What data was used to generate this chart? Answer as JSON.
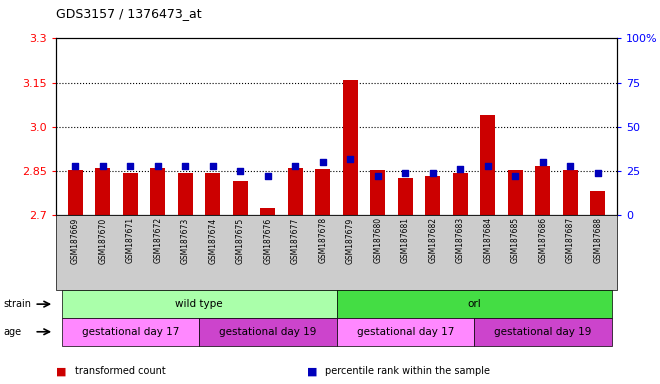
{
  "title": "GDS3157 / 1376473_at",
  "samples": [
    "GSM187669",
    "GSM187670",
    "GSM187671",
    "GSM187672",
    "GSM187673",
    "GSM187674",
    "GSM187675",
    "GSM187676",
    "GSM187677",
    "GSM187678",
    "GSM187679",
    "GSM187680",
    "GSM187681",
    "GSM187682",
    "GSM187683",
    "GSM187684",
    "GSM187685",
    "GSM187686",
    "GSM187687",
    "GSM187688"
  ],
  "red_values": [
    2.855,
    2.86,
    2.845,
    2.86,
    2.845,
    2.844,
    2.815,
    2.725,
    2.86,
    2.856,
    3.16,
    2.855,
    2.828,
    2.835,
    2.845,
    3.04,
    2.855,
    2.868,
    2.855,
    2.782
  ],
  "blue_values": [
    28,
    28,
    28,
    28,
    28,
    28,
    25,
    22,
    28,
    30,
    32,
    22,
    24,
    24,
    26,
    28,
    22,
    30,
    28,
    24
  ],
  "ylim_left": [
    2.7,
    3.3
  ],
  "ylim_right": [
    0,
    100
  ],
  "yticks_left": [
    2.7,
    2.85,
    3.0,
    3.15,
    3.3
  ],
  "yticks_right": [
    0,
    25,
    50,
    75,
    100
  ],
  "hlines": [
    2.85,
    3.0,
    3.15
  ],
  "strain_labels": [
    {
      "label": "wild type",
      "start": 0,
      "end": 10,
      "color": "#AAFFAA"
    },
    {
      "label": "orl",
      "start": 10,
      "end": 20,
      "color": "#44DD44"
    }
  ],
  "age_labels": [
    {
      "label": "gestational day 17",
      "start": 0,
      "end": 5,
      "color": "#FF88FF"
    },
    {
      "label": "gestational day 19",
      "start": 5,
      "end": 10,
      "color": "#CC44CC"
    },
    {
      "label": "gestational day 17",
      "start": 10,
      "end": 15,
      "color": "#FF88FF"
    },
    {
      "label": "gestational day 19",
      "start": 15,
      "end": 20,
      "color": "#CC44CC"
    }
  ],
  "red_color": "#CC0000",
  "blue_color": "#0000BB",
  "bar_width": 0.55,
  "baseline": 2.7,
  "legend_items": [
    {
      "label": "transformed count",
      "color": "#CC0000"
    },
    {
      "label": "percentile rank within the sample",
      "color": "#0000BB"
    }
  ],
  "gray_bg": "#CCCCCC",
  "chart_bg": "#FFFFFF"
}
